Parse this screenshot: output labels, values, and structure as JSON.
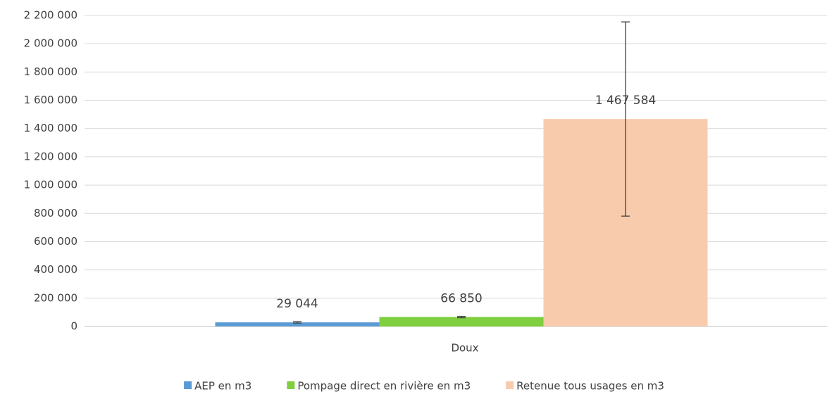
{
  "chart_data": {
    "type": "bar",
    "categories": [
      "Doux"
    ],
    "series": [
      {
        "name": "AEP en m3",
        "color": "#5b9bd5",
        "values": [
          29044
        ],
        "value_labels": [
          "29 044"
        ],
        "errors": [
          5000
        ]
      },
      {
        "name": "Pompage direct en rivière en m3",
        "color": "#7fcf3f",
        "values": [
          66850
        ],
        "value_labels": [
          "66 850"
        ],
        "errors": [
          5000
        ]
      },
      {
        "name": "Retenue tous usages en m3",
        "color": "#f8cbad",
        "values": [
          1467584
        ],
        "value_labels": [
          "1 467 584"
        ],
        "errors": [
          687000
        ]
      }
    ],
    "ylim": [
      0,
      2200000
    ],
    "yticks": [
      0,
      {
        "value": 200000,
        "label": "200 000"
      },
      {
        "value": 400000,
        "label": "400 000"
      },
      {
        "value": 600000,
        "label": "600 000"
      },
      {
        "value": 800000,
        "label": "800 000"
      },
      {
        "value": 1000000,
        "label": "1 000 000"
      },
      {
        "value": 1200000,
        "label": "1 200 000"
      },
      {
        "value": 1400000,
        "label": "1 400 000"
      },
      {
        "value": 1600000,
        "label": "1 600 000"
      },
      {
        "value": 1800000,
        "label": "1 800 000"
      },
      {
        "value": 2000000,
        "label": "2 000 000"
      },
      {
        "value": 2200000,
        "label": "2 200 000"
      }
    ],
    "grid": true,
    "legend": "bottom"
  }
}
